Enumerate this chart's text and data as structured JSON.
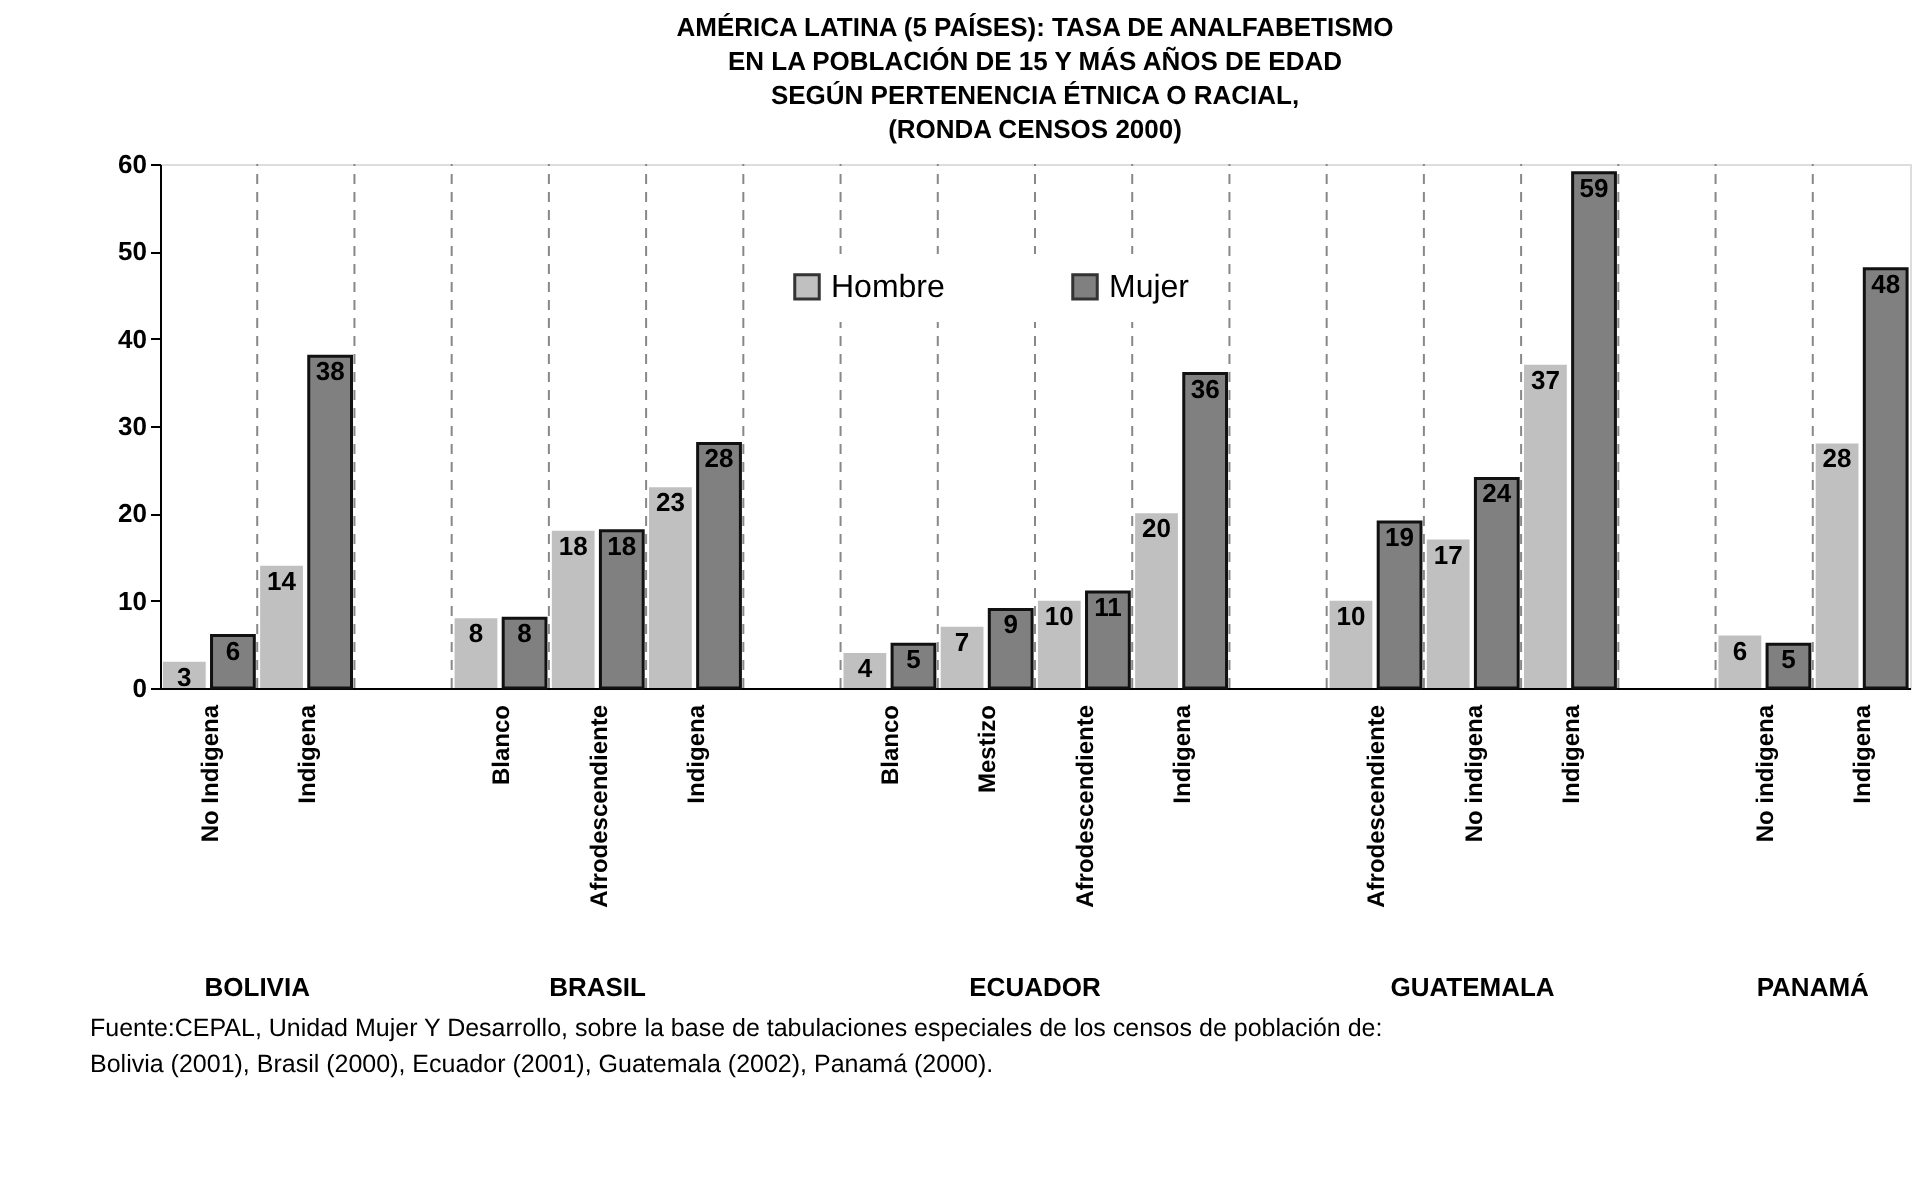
{
  "chart_data": {
    "type": "bar",
    "title": "AMÉRICA LATINA (5 PAÍSES): TASA DE ANALFABETISMO\nEN LA POBLACIÓN DE  15 Y MÁS AÑOS DE EDAD\nSEGÚN PERTENENCIA ÉTNICA O RACIAL,\n(RONDA CENSOS 2000)",
    "categories": [
      "No Indigena",
      "Indigena",
      null,
      "Blanco",
      "Afrodescendiente",
      "Indigena",
      null,
      "Blanco",
      "Mestizo",
      "Afrodescendiente",
      "Indigena",
      null,
      "Afrodescendiente",
      "No indigena",
      "Indigena",
      null,
      "No indigena",
      "Indigena"
    ],
    "series": [
      {
        "name": "Hombre",
        "color": "#c0c0c0",
        "values": [
          3,
          14,
          null,
          8,
          18,
          23,
          null,
          4,
          7,
          10,
          20,
          null,
          10,
          17,
          37,
          null,
          6,
          28
        ]
      },
      {
        "name": "Mujer",
        "color": "#808080",
        "values": [
          6,
          38,
          null,
          8,
          18,
          28,
          null,
          5,
          9,
          11,
          36,
          null,
          19,
          24,
          59,
          null,
          5,
          48
        ]
      }
    ],
    "ylim": [
      0,
      60
    ],
    "yticks": [
      0,
      10,
      20,
      30,
      40,
      50,
      60
    ],
    "grid": "x",
    "legend": "top",
    "data_labels": true,
    "annotations": [
      "BOLIVIA",
      "BRASIL",
      "ECUADOR",
      "GUATEMALA",
      "PANAMÁ",
      "Fuente:CEPAL, Unidad Mujer Y Desarrollo,  sobre la base de tabulaciones especiales de los censos de población de:",
      "Bolivia (2001), Brasil (2000), Ecuador (2001), Guatemala (2002), Panamá (2000)."
    ]
  }
}
